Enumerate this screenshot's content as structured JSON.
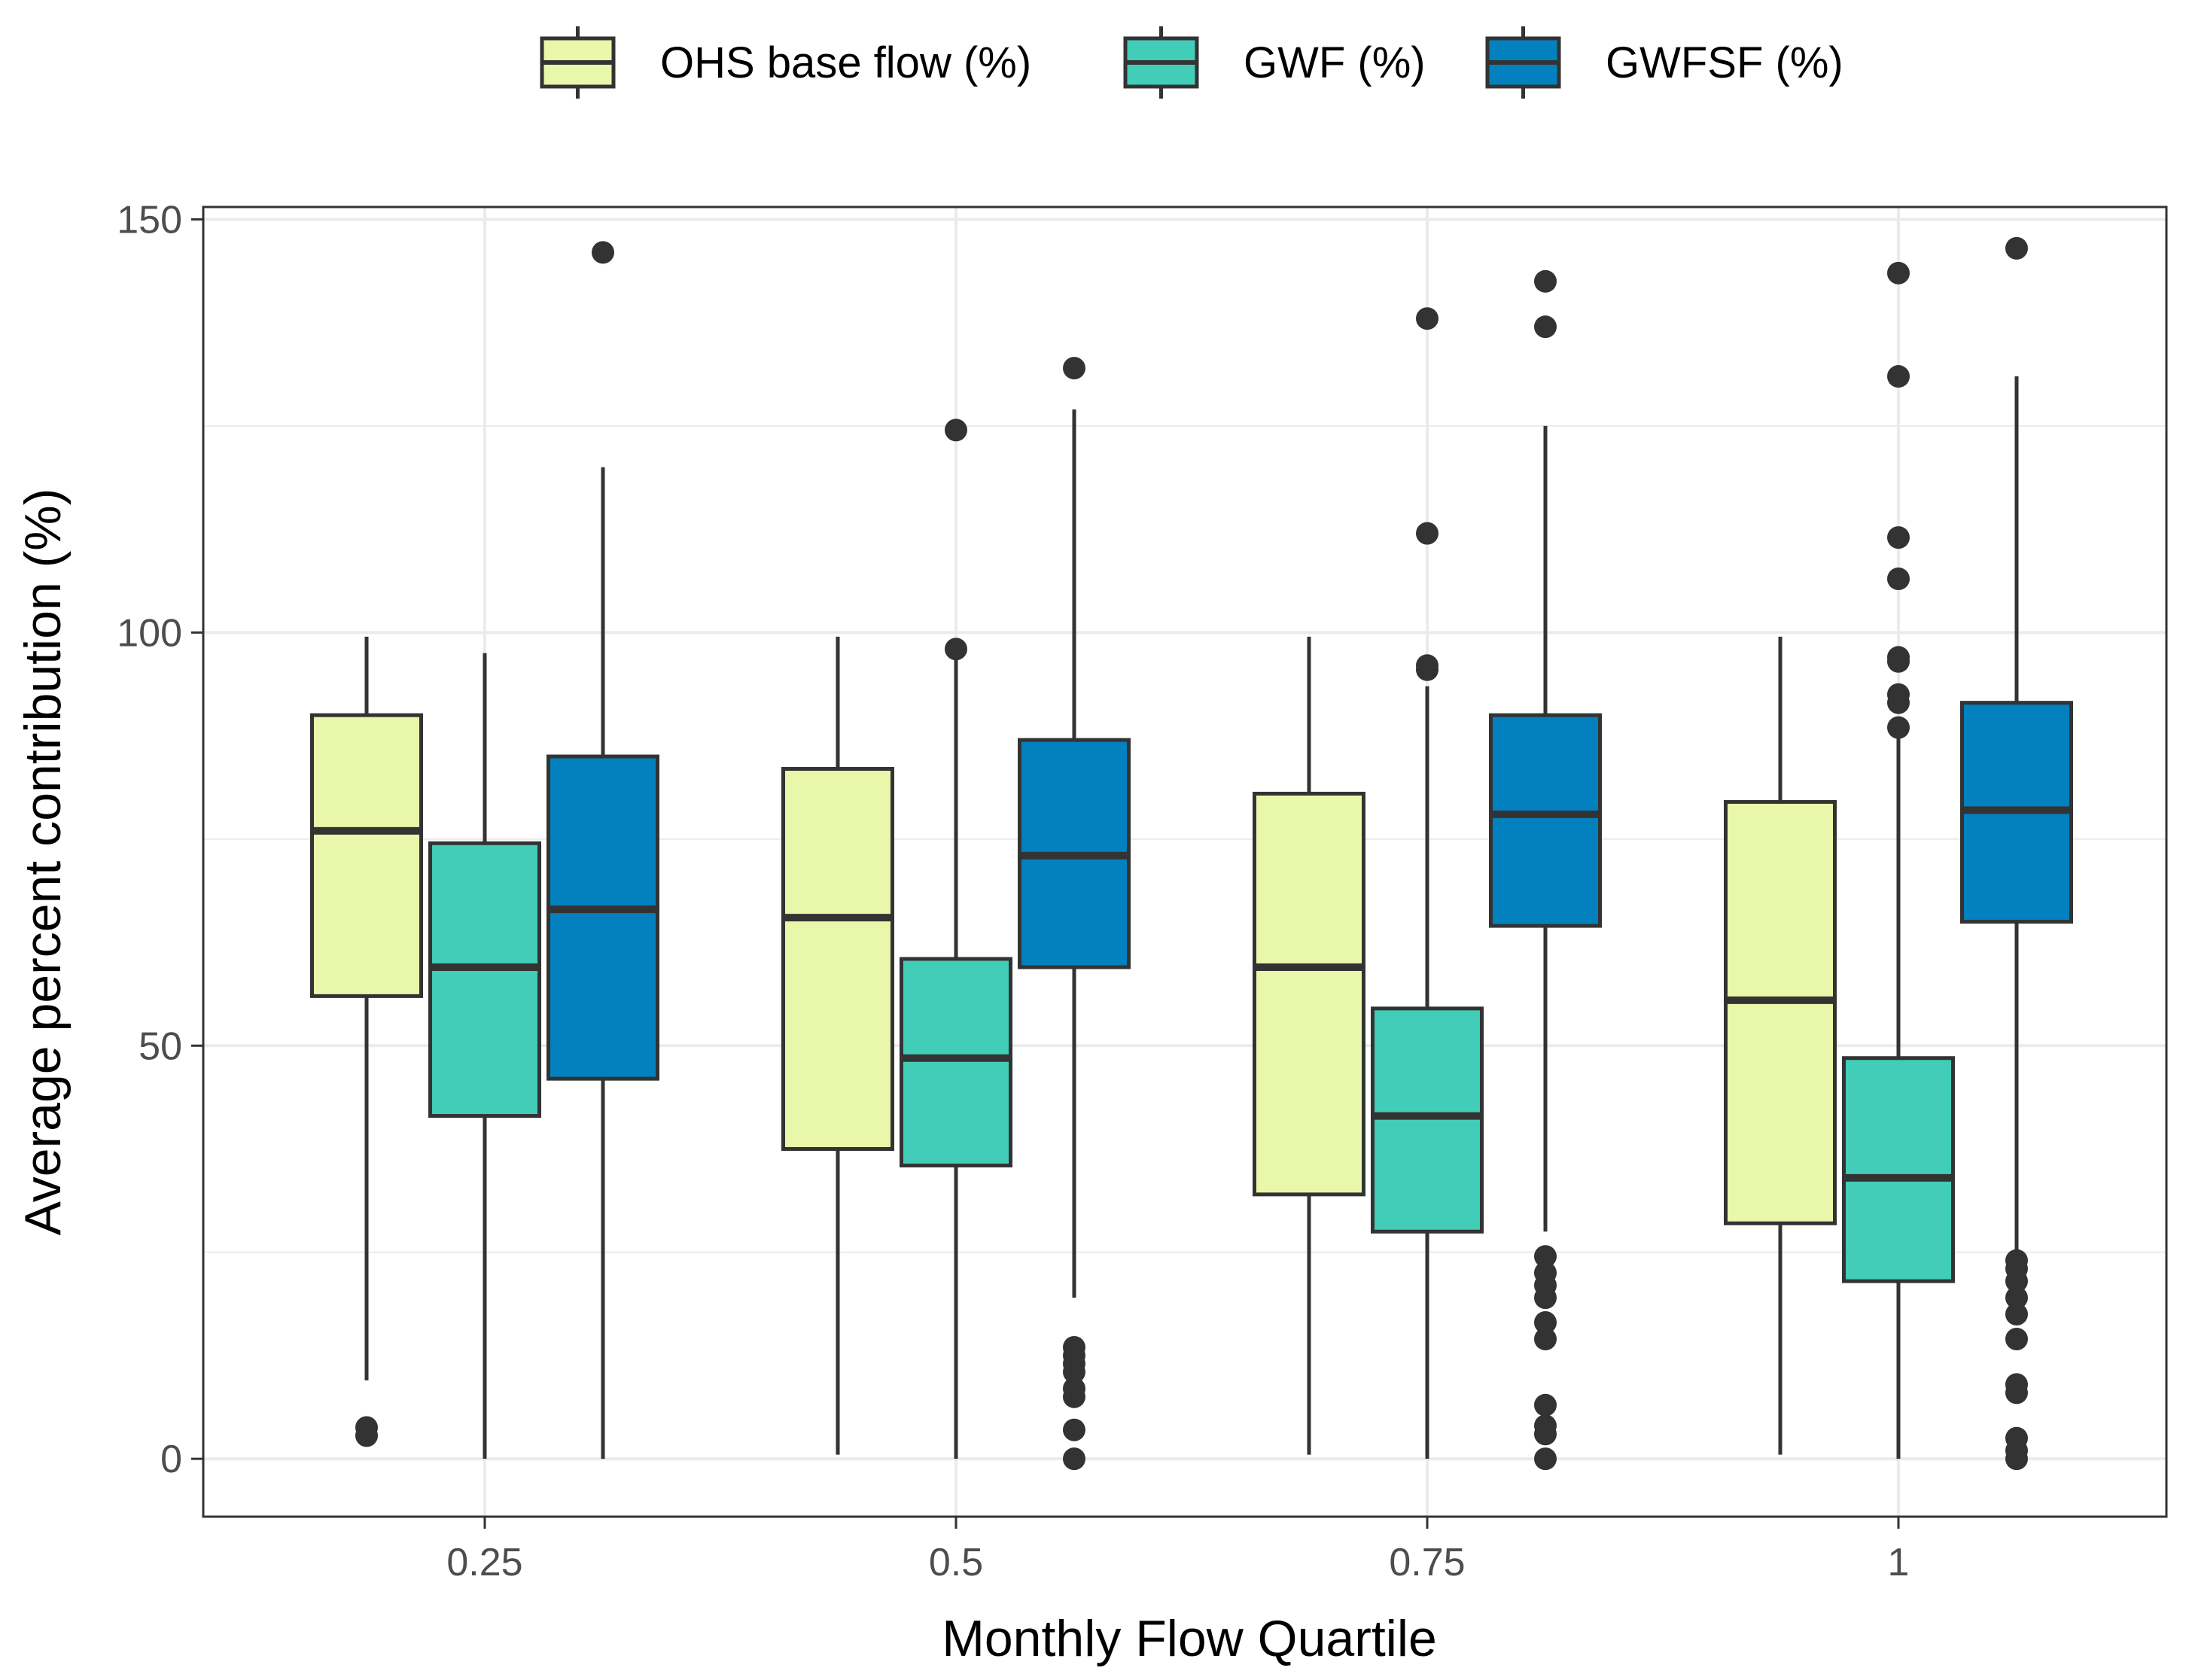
{
  "chart_data": {
    "type": "boxplot",
    "title": "",
    "xlabel": "Monthly Flow Quartile",
    "ylabel": "Average percent contribution (%)",
    "categories": [
      "0.25",
      "0.5",
      "0.75",
      "1"
    ],
    "y_ticks": [
      "0",
      "50",
      "100",
      "150"
    ],
    "ylim": [
      -7,
      151.5
    ],
    "grid": true,
    "legend_position": "top",
    "series": [
      {
        "name": "OHS base flow (%)",
        "color": "#e8f7a9",
        "boxes": [
          {
            "q1": 56,
            "median": 76,
            "q3": 90,
            "whisker_low": 9.5,
            "whisker_high": 99.5,
            "outliers": [
              2.8,
              3.8
            ]
          },
          {
            "q1": 37.5,
            "median": 65.5,
            "q3": 83.5,
            "whisker_low": 0.5,
            "whisker_high": 99.5,
            "outliers": []
          },
          {
            "q1": 32,
            "median": 59.5,
            "q3": 80.5,
            "whisker_low": 0.5,
            "whisker_high": 99.5,
            "outliers": []
          },
          {
            "q1": 28.5,
            "median": 55.5,
            "q3": 79.5,
            "whisker_low": 0.5,
            "whisker_high": 99.5,
            "outliers": []
          }
        ]
      },
      {
        "name": "GWF (%)",
        "color": "#41cdb7",
        "boxes": [
          {
            "q1": 41.5,
            "median": 59.5,
            "q3": 74.5,
            "whisker_low": 0,
            "whisker_high": 97.5,
            "outliers": []
          },
          {
            "q1": 35.5,
            "median": 48.5,
            "q3": 60.5,
            "whisker_low": 0,
            "whisker_high": 97.5,
            "outliers": [
              98,
              124.5
            ]
          },
          {
            "q1": 27.5,
            "median": 41.5,
            "q3": 54.5,
            "whisker_low": 0,
            "whisker_high": 93.5,
            "outliers": [
              95.5,
              96,
              112,
              138
            ]
          },
          {
            "q1": 21.5,
            "median": 34,
            "q3": 48.5,
            "whisker_low": 0,
            "whisker_high": 88.5,
            "outliers": [
              88.5,
              91.5,
              92.5,
              96.5,
              97,
              106.5,
              111.5,
              131,
              143.5
            ]
          }
        ]
      },
      {
        "name": "GWFSF (%)",
        "color": "#0380be",
        "boxes": [
          {
            "q1": 46,
            "median": 66.5,
            "q3": 85,
            "whisker_low": 0,
            "whisker_high": 120,
            "outliers": [
              146
            ]
          },
          {
            "q1": 59.5,
            "median": 73,
            "q3": 87,
            "whisker_low": 19.5,
            "whisker_high": 127,
            "outliers": [
              0,
              3.5,
              7.5,
              8.5,
              10.5,
              11.5,
              12.5,
              13.5,
              132
            ]
          },
          {
            "q1": 64.5,
            "median": 78,
            "q3": 90,
            "whisker_low": 27.5,
            "whisker_high": 125,
            "outliers": [
              0,
              3,
              4,
              6.5,
              14.5,
              16.5,
              19.5,
              21,
              22.5,
              24.5,
              137,
              142.5
            ]
          },
          {
            "q1": 65,
            "median": 78.5,
            "q3": 91.5,
            "whisker_low": 24.5,
            "whisker_high": 131,
            "outliers": [
              0,
              1,
              2.5,
              8,
              9,
              14.5,
              17.5,
              19.5,
              21.5,
              23,
              24,
              146.5
            ]
          }
        ]
      }
    ]
  }
}
